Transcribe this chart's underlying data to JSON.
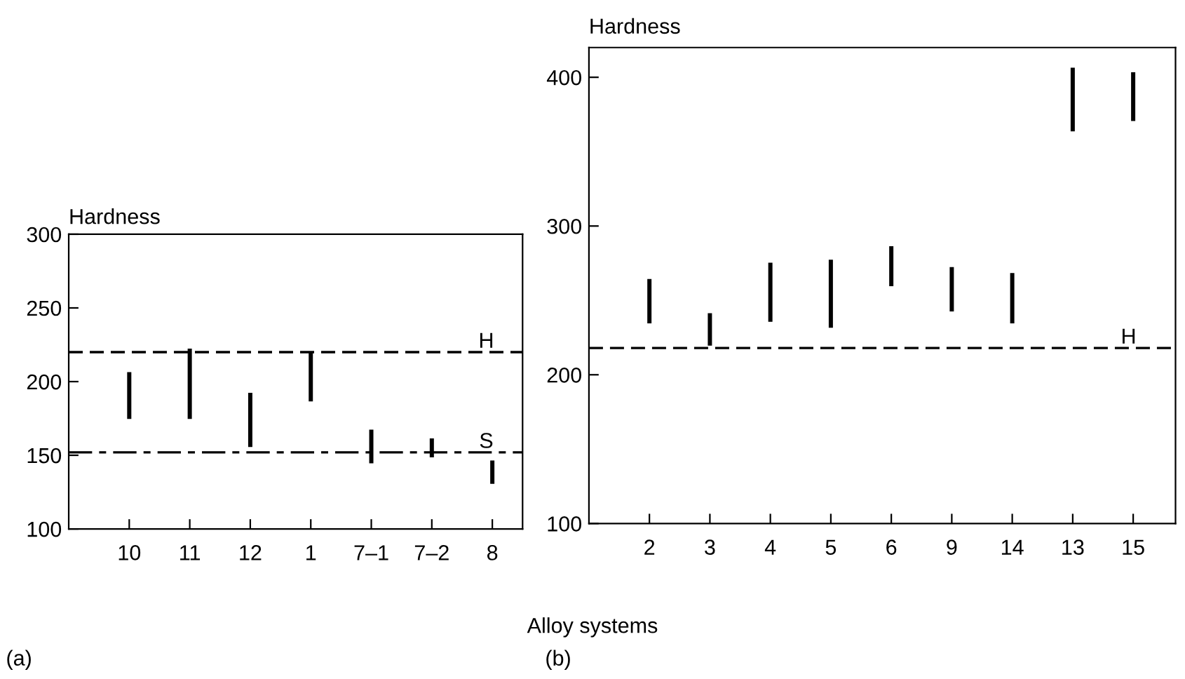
{
  "chart_data": [
    {
      "type": "bar",
      "ylabel": "Hardness",
      "xlabel": "Alloy systems",
      "annotations": [
        "(a)"
      ],
      "categories": [
        "10",
        "11",
        "12",
        "1",
        "7–1",
        "7–2",
        "8"
      ],
      "base": [
        175,
        175,
        156,
        187,
        145,
        149,
        131
      ],
      "values": [
        31,
        47,
        36,
        33,
        22,
        12,
        15
      ],
      "color": "#000000",
      "ylim": [
        100,
        300
      ],
      "yticks": [
        100,
        150,
        200,
        250,
        300
      ],
      "grid": false,
      "ref_lines": [
        {
          "axis": "y",
          "value": 220,
          "label": "H",
          "line_style": "dashed",
          "color": "#000000"
        },
        {
          "axis": "y",
          "value": 152,
          "label": "S",
          "line_style": "dashdot",
          "color": "#000000"
        }
      ]
    },
    {
      "type": "bar",
      "ylabel": "Hardness",
      "annotations": [
        "(b)"
      ],
      "categories": [
        "2",
        "3",
        "4",
        "5",
        "6",
        "9",
        "14",
        "13",
        "15"
      ],
      "base": [
        235,
        220,
        236,
        232,
        260,
        243,
        235,
        364,
        371
      ],
      "values": [
        29,
        21,
        39,
        45,
        26,
        29,
        33,
        42,
        32
      ],
      "color": "#000000",
      "ylim": [
        100,
        420
      ],
      "yticks": [
        100,
        200,
        300,
        400
      ],
      "grid": false,
      "ref_lines": [
        {
          "axis": "y",
          "value": 218,
          "label": "H",
          "line_style": "dashed",
          "color": "#000000"
        }
      ]
    }
  ]
}
